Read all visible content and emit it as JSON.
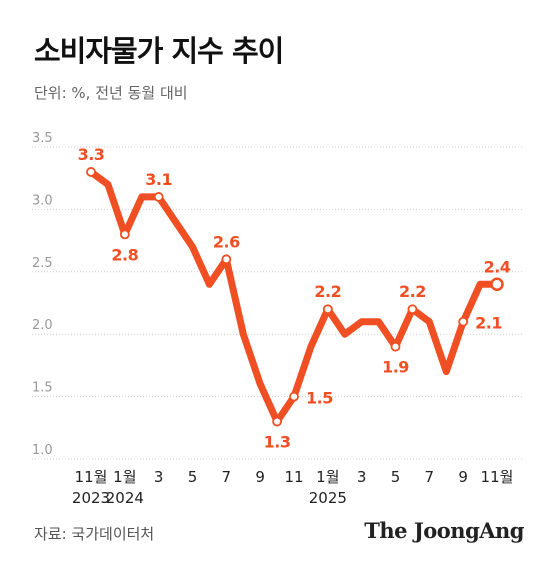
{
  "header": {
    "title": "소비자물가 지수 추이",
    "subtitle": "단위: %, 전년 동월 대비"
  },
  "footer": {
    "source": "자료: 국가데이터처",
    "brand": "The JoongAng"
  },
  "colors": {
    "line": "#f04e23",
    "label": "#f04e23",
    "grid": "#cfcfcf",
    "axis_text": "#999999",
    "tick_text": "#222222"
  },
  "chart_data": {
    "type": "line",
    "title": "소비자물가 지수 추이",
    "ylabel": "",
    "xlabel": "",
    "ylim": [
      1.0,
      3.5
    ],
    "yticks": [
      "3.5",
      "3.0",
      "2.5",
      "2.0",
      "1.5",
      "1.0"
    ],
    "ytick_values": [
      3.5,
      3.0,
      2.5,
      2.0,
      1.5,
      1.0
    ],
    "grid": true,
    "x": [
      "2023-11",
      "2023-12",
      "2024-01",
      "2024-02",
      "2024-03",
      "2024-04",
      "2024-05",
      "2024-06",
      "2024-07",
      "2024-08",
      "2024-09",
      "2024-10",
      "2024-11",
      "2024-12",
      "2025-01",
      "2025-02",
      "2025-03",
      "2025-04",
      "2025-05",
      "2025-06",
      "2025-07",
      "2025-08",
      "2025-09",
      "2025-10",
      "2025-11"
    ],
    "series": [
      {
        "values": [
          3.3,
          3.2,
          2.8,
          3.1,
          3.1,
          2.9,
          2.7,
          2.4,
          2.6,
          2.0,
          1.6,
          1.3,
          1.5,
          1.9,
          2.2,
          2.0,
          2.1,
          2.1,
          1.9,
          2.2,
          2.1,
          1.7,
          2.1,
          2.4,
          2.4
        ]
      }
    ],
    "xtick_labels": [
      {
        "month": "11월",
        "year": "2023",
        "index": 0
      },
      {
        "month": "1월",
        "year": "2024",
        "index": 2
      },
      {
        "month": "3",
        "year": "",
        "index": 4
      },
      {
        "month": "5",
        "year": "",
        "index": 6
      },
      {
        "month": "7",
        "year": "",
        "index": 8
      },
      {
        "month": "9",
        "year": "",
        "index": 10
      },
      {
        "month": "11",
        "year": "",
        "index": 12
      },
      {
        "month": "1월",
        "year": "2025",
        "index": 14
      },
      {
        "month": "3",
        "year": "",
        "index": 16
      },
      {
        "month": "5",
        "year": "",
        "index": 18
      },
      {
        "month": "7",
        "year": "",
        "index": 20
      },
      {
        "month": "9",
        "year": "",
        "index": 22
      },
      {
        "month": "11월",
        "year": "",
        "index": 24
      }
    ],
    "data_labels": [
      {
        "index": 0,
        "text": "3.3",
        "pos": "above"
      },
      {
        "index": 2,
        "text": "2.8",
        "pos": "below"
      },
      {
        "index": 4,
        "text": "3.1",
        "pos": "above"
      },
      {
        "index": 8,
        "text": "2.6",
        "pos": "above"
      },
      {
        "index": 11,
        "text": "1.3",
        "pos": "below"
      },
      {
        "index": 12,
        "text": "1.5",
        "pos": "right"
      },
      {
        "index": 14,
        "text": "2.2",
        "pos": "above"
      },
      {
        "index": 18,
        "text": "1.9",
        "pos": "below"
      },
      {
        "index": 19,
        "text": "2.2",
        "pos": "above"
      },
      {
        "index": 22,
        "text": "2.1",
        "pos": "right"
      },
      {
        "index": 24,
        "text": "2.4",
        "pos": "above"
      }
    ],
    "markers": [
      0,
      2,
      4,
      8,
      11,
      12,
      14,
      18,
      19,
      22,
      24
    ]
  }
}
